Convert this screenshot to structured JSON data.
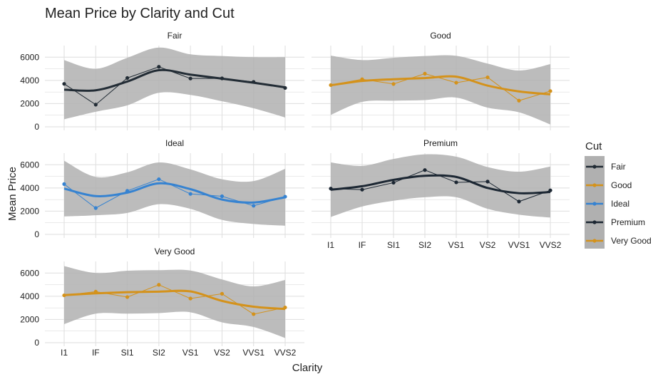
{
  "chart_data": {
    "type": "line",
    "title": "Mean Price by Clarity and Cut",
    "xlabel": "Clarity",
    "ylabel": "Mean Price",
    "categories": [
      "I1",
      "IF",
      "SI1",
      "SI2",
      "VS1",
      "VS2",
      "VVS1",
      "VVS2"
    ],
    "ylim": [
      0,
      7000
    ],
    "yticks": [
      0,
      2000,
      4000,
      6000
    ],
    "grid": true,
    "legend": {
      "title": "Cut",
      "placement": "right",
      "entries": [
        "Fair",
        "Good",
        "Ideal",
        "Premium",
        "Very Good"
      ]
    },
    "colors": {
      "Fair": "#222c35",
      "Good": "#d4921b",
      "Ideal": "#3683d1",
      "Premium": "#1c2733",
      "Very Good": "#d4921b",
      "ribbon": "#b0b0b0",
      "grid": "#dedede"
    },
    "panels": [
      {
        "name": "Fair",
        "values": [
          3704,
          1912,
          4208,
          5173,
          4165,
          4175,
          3871,
          3349
        ],
        "smooth": [
          3200,
          3150,
          3900,
          4880,
          4500,
          4150,
          3800,
          3400
        ],
        "band_width": [
          2550,
          1850,
          2050,
          1950,
          1750,
          1950,
          2200,
          2600
        ]
      },
      {
        "name": "Good",
        "values": [
          3597,
          4098,
          3690,
          4580,
          3801,
          4262,
          2255,
          3080
        ],
        "smooth": [
          3580,
          3950,
          4100,
          4200,
          4320,
          3550,
          3050,
          2800
        ],
        "band_width": [
          2550,
          1800,
          1850,
          1900,
          1800,
          1900,
          1800,
          2600
        ]
      },
      {
        "name": "Ideal",
        "values": [
          4336,
          2273,
          3752,
          4756,
          3490,
          3285,
          2468,
          3250
        ],
        "smooth": [
          3950,
          3300,
          3600,
          4400,
          3900,
          3000,
          2750,
          3200
        ],
        "band_width": [
          2400,
          1650,
          1750,
          1800,
          1700,
          1750,
          1850,
          2450
        ]
      },
      {
        "name": "Premium",
        "values": [
          3947,
          3856,
          4456,
          5546,
          4485,
          4551,
          2831,
          3795
        ],
        "smooth": [
          3850,
          4150,
          4700,
          5050,
          4950,
          4000,
          3550,
          3650
        ],
        "band_width": [
          2350,
          1750,
          1800,
          1850,
          1750,
          1800,
          1850,
          2200
        ]
      },
      {
        "name": "Very Good",
        "values": [
          4078,
          4396,
          3932,
          4989,
          3805,
          4216,
          2459,
          3037
        ],
        "smooth": [
          4100,
          4250,
          4350,
          4400,
          4420,
          3600,
          3100,
          2900
        ],
        "band_width": [
          2500,
          1750,
          1850,
          1850,
          1800,
          1850,
          1750,
          2500
        ]
      }
    ]
  }
}
